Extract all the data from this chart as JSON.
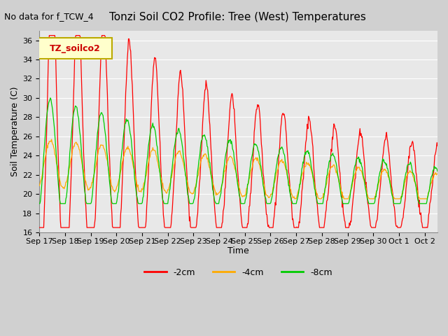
{
  "title": "Tonzi Soil CO2 Profile: Tree (West) Temperatures",
  "subtitle": "No data for f_TCW_4",
  "ylabel": "Soil Temperature (C)",
  "xlabel": "Time",
  "ylim": [
    16,
    37
  ],
  "yticks": [
    16,
    18,
    20,
    22,
    24,
    26,
    28,
    30,
    32,
    34,
    36
  ],
  "xtick_labels": [
    "Sep 17",
    "Sep 18",
    "Sep 19",
    "Sep 20",
    "Sep 21",
    "Sep 22",
    "Sep 23",
    "Sep 24",
    "Sep 25",
    "Sep 26",
    "Sep 27",
    "Sep 28",
    "Sep 29",
    "Sep 30",
    "Oct 1",
    "Oct 2"
  ],
  "legend_label": "TZ_soilco2",
  "legend_bg": "#ffffcc",
  "legend_border": "#bbaa00",
  "fig_bg": "#d0d0d0",
  "plot_bg": "#e8e8e8",
  "grid_color": "#ffffff",
  "line_colors": {
    "m2cm": "#ff0000",
    "m4cm": "#ffaa00",
    "m8cm": "#00cc00"
  },
  "title_fontsize": 11,
  "subtitle_fontsize": 9,
  "axis_fontsize": 9,
  "tick_fontsize": 8,
  "legend_fontsize": 9
}
